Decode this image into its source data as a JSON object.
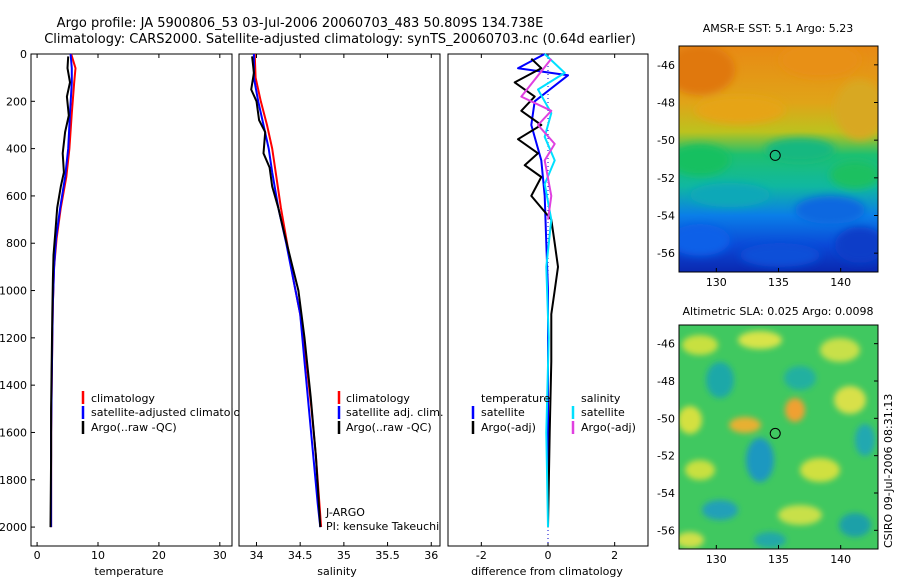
{
  "header": {
    "line1": "Argo profile: JA 5900806_53 03-Jul-2006 20060703_483 50.809S 134.738E",
    "line2": "Climatology: CARS2000. Satellite-adjusted climatology: synTS_20060703.nc (0.64d earlier)"
  },
  "footer": {
    "credit": "CSIRO 09-Jul-2006 08:31:13"
  },
  "colors": {
    "climatology": "#ff0000",
    "satellite": "#0000ff",
    "argo": "#000000",
    "sat_salt": "#00e0ff",
    "argo_salt": "#e040e0",
    "dotted": "#0000cc"
  },
  "chart_data": [
    {
      "type": "line",
      "id": "temperature",
      "xlabel": "temperature",
      "ylabel": "",
      "xlim": [
        -1,
        32
      ],
      "ylim": [
        0,
        2080
      ],
      "xticks": [
        "0",
        "10",
        "20",
        "30"
      ],
      "xtick_values": [
        0,
        10,
        20,
        30
      ],
      "yticks": [
        "0",
        "200",
        "400",
        "600",
        "800",
        "1000",
        "1200",
        "1400",
        "1600",
        "1800",
        "2000"
      ],
      "ytick_values": [
        0,
        200,
        400,
        600,
        800,
        1000,
        1200,
        1400,
        1600,
        1800,
        2000
      ],
      "legend": [
        "climatology",
        "satellite-adjusted climatology",
        "Argo(..raw -QC)"
      ],
      "series": [
        {
          "name": "climatology",
          "color": "#ff0000",
          "x": [
            5.6,
            6.3,
            6.1,
            5.7,
            5.3,
            4.8,
            3.9,
            3.2,
            2.8,
            2.6,
            2.5,
            2.4,
            2.3,
            2.3,
            2.3
          ],
          "y": [
            0,
            60,
            120,
            250,
            400,
            520,
            650,
            780,
            900,
            1050,
            1200,
            1400,
            1600,
            1800,
            2000
          ]
        },
        {
          "name": "satellite-adjusted climatology",
          "color": "#0000ff",
          "x": [
            5.5,
            5.7,
            5.7,
            5.4,
            5.1,
            4.6,
            3.8,
            3.1,
            2.8,
            2.6,
            2.5,
            2.4,
            2.3,
            2.3,
            2.3
          ],
          "y": [
            0,
            60,
            120,
            250,
            400,
            520,
            650,
            780,
            900,
            1050,
            1200,
            1400,
            1600,
            1800,
            2000
          ]
        },
        {
          "name": "Argo(..raw -QC)",
          "color": "#000000",
          "x": [
            5.1,
            5.0,
            5.4,
            4.9,
            5.2,
            4.6,
            4.2,
            4.4,
            3.9,
            3.3,
            3.0,
            2.7,
            2.6,
            2.5,
            2.4,
            2.3,
            2.3,
            2.2
          ],
          "y": [
            10,
            60,
            120,
            180,
            260,
            330,
            420,
            500,
            560,
            650,
            750,
            850,
            950,
            1100,
            1300,
            1500,
            1700,
            2000
          ]
        }
      ]
    },
    {
      "type": "line",
      "id": "salinity",
      "xlabel": "salinity",
      "ylabel": "",
      "xlim": [
        33.8,
        36.1
      ],
      "ylim": [
        0,
        2080
      ],
      "xticks": [
        "34",
        "34.5",
        "35",
        "35.5",
        "36"
      ],
      "xtick_values": [
        34,
        34.5,
        35,
        35.5,
        36
      ],
      "legend": [
        "climatology",
        "satellite adj. clim.",
        "Argo(..raw -QC)"
      ],
      "annotation": [
        "J-ARGO",
        "PI: kensuke Takeuchi"
      ],
      "series": [
        {
          "name": "climatology",
          "color": "#ff0000",
          "x": [
            33.98,
            33.99,
            34.05,
            34.12,
            34.18,
            34.22,
            34.28,
            34.35,
            34.42,
            34.5,
            34.57,
            34.63,
            34.68,
            34.72,
            34.74
          ],
          "y": [
            0,
            100,
            200,
            300,
            400,
            500,
            650,
            800,
            950,
            1100,
            1300,
            1500,
            1700,
            1900,
            2000
          ]
        },
        {
          "name": "satellite adj. clim.",
          "color": "#0000ff",
          "x": [
            33.97,
            33.97,
            34.02,
            34.08,
            34.14,
            34.18,
            34.25,
            34.34,
            34.42,
            34.5,
            34.55,
            34.6,
            34.65,
            34.7,
            34.73
          ],
          "y": [
            0,
            100,
            200,
            300,
            400,
            500,
            650,
            800,
            950,
            1100,
            1300,
            1500,
            1700,
            1900,
            2000
          ]
        },
        {
          "name": "Argo(..raw -QC)",
          "color": "#000000",
          "x": [
            33.95,
            33.97,
            33.94,
            34.0,
            34.03,
            34.1,
            34.08,
            34.15,
            34.18,
            34.25,
            34.32,
            34.4,
            34.48,
            34.55,
            34.62,
            34.68,
            34.73
          ],
          "y": [
            10,
            80,
            150,
            200,
            280,
            330,
            420,
            480,
            560,
            650,
            760,
            880,
            1000,
            1200,
            1450,
            1700,
            2000
          ]
        }
      ]
    },
    {
      "type": "line",
      "id": "difference",
      "xlabel": "difference from climatology",
      "ylabel": "",
      "xlim": [
        -3.0,
        3.0
      ],
      "ylim": [
        0,
        2080
      ],
      "xticks": [
        "-2",
        "0",
        "2"
      ],
      "xtick_values": [
        -2,
        0,
        2
      ],
      "legend_left_title": "temperature",
      "legend_right_title": "salinity",
      "legend_left": [
        "satellite",
        "Argo(-adj)"
      ],
      "legend_right": [
        "satellite",
        "Argo(-adj)"
      ],
      "series": [
        {
          "name": "temperature satellite",
          "color": "#0000ff",
          "x": [
            -0.1,
            -0.9,
            0.6,
            -0.4,
            -0.5,
            -0.2,
            -0.1,
            -0.05,
            0,
            0,
            0,
            0
          ],
          "y": [
            0,
            60,
            90,
            200,
            300,
            450,
            600,
            800,
            1000,
            1300,
            1600,
            2000
          ]
        },
        {
          "name": "temperature Argo(-adj)",
          "color": "#000000",
          "x": [
            -0.5,
            -0.2,
            -1.0,
            -0.4,
            -0.8,
            -0.2,
            -0.9,
            -0.3,
            -0.7,
            -0.2,
            -0.5,
            0.1,
            0.2,
            0.3,
            0.2,
            0.1,
            0.1,
            0.05,
            0
          ],
          "y": [
            20,
            60,
            120,
            180,
            240,
            300,
            360,
            420,
            470,
            520,
            600,
            700,
            800,
            900,
            1000,
            1100,
            1300,
            1600,
            2000
          ]
        },
        {
          "name": "salinity satellite",
          "color": "#00e0ff",
          "x": [
            -0.1,
            0.5,
            -0.3,
            0.1,
            -0.1,
            0.2,
            -0.1,
            0.1,
            -0.05,
            0.02,
            -0.05,
            0
          ],
          "y": [
            0,
            80,
            150,
            250,
            350,
            450,
            550,
            700,
            900,
            1200,
            1600,
            2000
          ]
        },
        {
          "name": "salinity Argo(-adj)",
          "color": "#e040e0",
          "x": [
            0.1,
            -0.8,
            0.1,
            -0.3,
            0.2,
            -0.1,
            0.1,
            0
          ],
          "y": [
            20,
            180,
            240,
            300,
            380,
            450,
            600,
            700
          ]
        }
      ]
    },
    {
      "type": "heatmap",
      "id": "sst-map",
      "title": "AMSR-E SST: 5.1 Argo: 5.23",
      "xticks": [
        "130",
        "135",
        "140"
      ],
      "xtick_values": [
        130,
        135,
        140
      ],
      "yticks": [
        "-46",
        "-48",
        "-50",
        "-52",
        "-54",
        "-56"
      ],
      "ytick_values": [
        -46,
        -48,
        -50,
        -52,
        -54,
        -56
      ],
      "xlim": [
        127,
        143
      ],
      "ylim": [
        -57,
        -45
      ],
      "marker": {
        "lon": 134.738,
        "lat": -50.809
      }
    },
    {
      "type": "heatmap",
      "id": "sla-map",
      "title": "Altimetric SLA: 0.025 Argo: 0.0098",
      "xticks": [
        "130",
        "135",
        "140"
      ],
      "xtick_values": [
        130,
        135,
        140
      ],
      "yticks": [
        "-46",
        "-48",
        "-50",
        "-52",
        "-54",
        "-56"
      ],
      "ytick_values": [
        -46,
        -48,
        -50,
        -52,
        -54,
        -56
      ],
      "xlim": [
        127,
        143
      ],
      "ylim": [
        -57,
        -45
      ],
      "marker": {
        "lon": 134.738,
        "lat": -50.809
      }
    }
  ]
}
